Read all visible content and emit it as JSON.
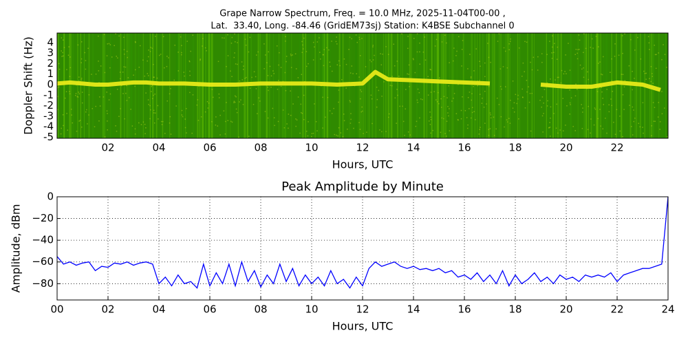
{
  "chart_data": [
    {
      "type": "spectrogram",
      "title": [
        "Grape Narrow Spectrum, Freq. = 10.0 MHz, 2025-11-04T00-00 ,",
        "Lat.  33.40, Long. -84.46 (GridEM73sj) Station: K4BSE Subchannel 0"
      ],
      "xlabel": "Hours, UTC",
      "ylabel": "Doppler Shift (Hz)",
      "x": [
        0,
        0.5,
        1,
        1.5,
        2,
        2.5,
        3,
        3.5,
        4,
        5,
        6,
        7,
        8,
        9,
        10,
        11,
        12,
        12.5,
        13,
        14,
        15,
        16,
        17,
        17.5,
        19,
        20,
        21,
        22,
        22.5,
        23,
        23.7
      ],
      "values": [
        0.1,
        0.2,
        0.1,
        0,
        0,
        0.1,
        0.2,
        0.2,
        0.1,
        0.1,
        0,
        0,
        0.1,
        0.1,
        0.1,
        0,
        0.1,
        1.2,
        0.5,
        0.4,
        0.3,
        0.2,
        0.1,
        null,
        0,
        -0.2,
        -0.2,
        0.2,
        0.1,
        0,
        -0.5
      ],
      "color": "#f2ee1a",
      "background": "#2f8a00",
      "xlim": [
        0,
        24
      ],
      "ylim": [
        -5.1,
        4.9
      ],
      "xticks": [
        {
          "value": 2,
          "label": "02"
        },
        {
          "value": 4,
          "label": "04"
        },
        {
          "value": 6,
          "label": "06"
        },
        {
          "value": 8,
          "label": "08"
        },
        {
          "value": 10,
          "label": "10"
        },
        {
          "value": 12,
          "label": "12"
        },
        {
          "value": 14,
          "label": "14"
        },
        {
          "value": 16,
          "label": "16"
        },
        {
          "value": 18,
          "label": "18"
        },
        {
          "value": 20,
          "label": "20"
        },
        {
          "value": 22,
          "label": "22"
        }
      ],
      "yticks": [
        4,
        3,
        2,
        1,
        0,
        -1,
        -2,
        -3,
        -4,
        -5
      ],
      "grid": false
    },
    {
      "type": "line",
      "title": "Peak Amplitude by Minute",
      "xlabel": "Hours, UTC",
      "ylabel": "Amplitude, dBm",
      "x": [
        0,
        0.25,
        0.5,
        0.75,
        1,
        1.25,
        1.5,
        1.75,
        2,
        2.25,
        2.5,
        2.75,
        3,
        3.25,
        3.5,
        3.75,
        4,
        4.25,
        4.5,
        4.75,
        5,
        5.25,
        5.5,
        5.75,
        6,
        6.25,
        6.5,
        6.75,
        7,
        7.25,
        7.5,
        7.75,
        8,
        8.25,
        8.5,
        8.75,
        9,
        9.25,
        9.5,
        9.75,
        10,
        10.25,
        10.5,
        10.75,
        11,
        11.25,
        11.5,
        11.75,
        12,
        12.25,
        12.5,
        12.75,
        13,
        13.25,
        13.5,
        13.75,
        14,
        14.25,
        14.5,
        14.75,
        15,
        15.25,
        15.5,
        15.75,
        16,
        16.25,
        16.5,
        16.75,
        17,
        17.25,
        17.5,
        17.75,
        18,
        18.25,
        18.5,
        18.75,
        19,
        19.25,
        19.5,
        19.75,
        20,
        20.25,
        20.5,
        20.75,
        21,
        21.25,
        21.5,
        21.75,
        22,
        22.25,
        22.5,
        22.75,
        23,
        23.25,
        23.5,
        23.75,
        24
      ],
      "values": [
        -55,
        -62,
        -60,
        -63,
        -61,
        -60,
        -68,
        -64,
        -65,
        -61,
        -62,
        -60,
        -63,
        -61,
        -60,
        -62,
        -80,
        -74,
        -82,
        -72,
        -80,
        -78,
        -84,
        -62,
        -82,
        -70,
        -80,
        -62,
        -82,
        -60,
        -78,
        -68,
        -83,
        -72,
        -80,
        -62,
        -78,
        -66,
        -82,
        -72,
        -80,
        -74,
        -82,
        -68,
        -80,
        -76,
        -84,
        -74,
        -82,
        -66,
        -60,
        -64,
        -62,
        -60,
        -64,
        -66,
        -64,
        -67,
        -66,
        -68,
        -66,
        -70,
        -68,
        -74,
        -72,
        -76,
        -70,
        -78,
        -72,
        -80,
        -68,
        -82,
        -72,
        -80,
        -76,
        -70,
        -78,
        -74,
        -80,
        -72,
        -76,
        -74,
        -78,
        -72,
        -74,
        -72,
        -74,
        -70,
        -78,
        -72,
        -70,
        -68,
        -66,
        -66,
        -64,
        -62,
        0
      ],
      "color": "#0000ff",
      "xlim": [
        0,
        24
      ],
      "ylim": [
        -95,
        0
      ],
      "xticks": [
        {
          "value": 0,
          "label": "00"
        },
        {
          "value": 2,
          "label": "02"
        },
        {
          "value": 4,
          "label": "04"
        },
        {
          "value": 6,
          "label": "06"
        },
        {
          "value": 8,
          "label": "08"
        },
        {
          "value": 10,
          "label": "10"
        },
        {
          "value": 12,
          "label": "12"
        },
        {
          "value": 14,
          "label": "14"
        },
        {
          "value": 16,
          "label": "16"
        },
        {
          "value": 18,
          "label": "18"
        },
        {
          "value": 20,
          "label": "20"
        },
        {
          "value": 22,
          "label": "22"
        },
        {
          "value": 24,
          "label": "24"
        }
      ],
      "yticks": [
        {
          "value": -80,
          "label": "−80"
        },
        {
          "value": -60,
          "label": "−60"
        },
        {
          "value": -40,
          "label": "−40"
        },
        {
          "value": -20,
          "label": "−20"
        },
        0
      ],
      "grid": true
    }
  ]
}
